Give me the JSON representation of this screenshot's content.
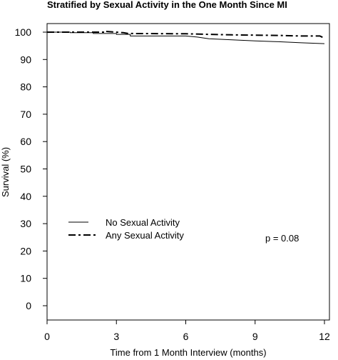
{
  "chart_data": {
    "type": "line",
    "title": "Stratified by Sexual Activity in the One Month Since MI",
    "xlabel": "Time from 1 Month Interview (months)",
    "ylabel": "Survival (%)",
    "xlim": [
      0,
      12
    ],
    "ylim": [
      0,
      100
    ],
    "x_ticks": [
      0,
      3,
      6,
      9,
      12
    ],
    "y_ticks": [
      0,
      10,
      20,
      30,
      40,
      50,
      60,
      70,
      80,
      90,
      100
    ],
    "x_tick_labels": [
      "0",
      "3",
      "6",
      "9",
      "12"
    ],
    "y_tick_labels": [
      "0",
      "10",
      "20",
      "30",
      "40",
      "50",
      "60",
      "70",
      "80",
      "90",
      "100"
    ],
    "grid": false,
    "legend_position": "left-lower",
    "series": [
      {
        "name": "No Sexual Activity",
        "style": "solid",
        "color": "#000000",
        "x": [
          0,
          1.0,
          1.0,
          2.0,
          2.0,
          3.0,
          3.0,
          3.6,
          3.6,
          6.0,
          6.5,
          7.0,
          8.0,
          9.0,
          10.0,
          11.0,
          12.0
        ],
        "y": [
          100,
          100,
          99.8,
          99.8,
          99.5,
          99.5,
          99.2,
          99.2,
          98.6,
          98.6,
          98.2,
          97.6,
          97.2,
          96.8,
          96.5,
          96.1,
          95.8
        ]
      },
      {
        "name": "Any Sexual Activity",
        "style": "dashdot",
        "color": "#000000",
        "x": [
          0,
          1.5,
          2.5,
          2.5,
          3.3,
          3.5,
          6.0,
          7.0,
          8.0,
          9.0,
          10.0,
          11.0,
          11.8,
          12.0
        ],
        "y": [
          100,
          100,
          100,
          100.3,
          99.8,
          99.5,
          99.4,
          99.2,
          99.0,
          98.9,
          98.8,
          98.6,
          98.6,
          97.8
        ]
      }
    ],
    "annotations": [
      {
        "text": "p = 0.08"
      }
    ]
  }
}
